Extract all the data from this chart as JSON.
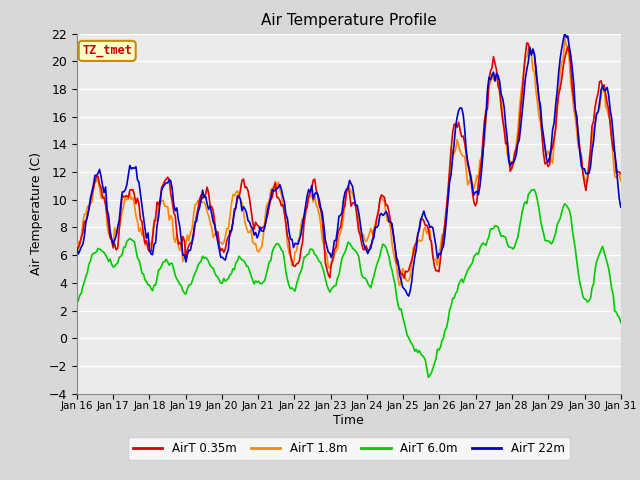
{
  "title": "Air Temperature Profile",
  "xlabel": "Time",
  "ylabel": "Air Temperature (C)",
  "ylim": [
    -4,
    22
  ],
  "yticks": [
    -4,
    -2,
    0,
    2,
    4,
    6,
    8,
    10,
    12,
    14,
    16,
    18,
    20,
    22
  ],
  "xtick_labels": [
    "Jan 16",
    "Jan 17",
    "Jan 18",
    "Jan 19",
    "Jan 20",
    "Jan 21",
    "Jan 22",
    "Jan 23",
    "Jan 24",
    "Jan 25",
    "Jan 26",
    "Jan 27",
    "Jan 28",
    "Jan 29",
    "Jan 30",
    "Jan 31"
  ],
  "annotation_text": "TZ_tmet",
  "annotation_color": "#cc0000",
  "annotation_bg": "#ffffcc",
  "annotation_border": "#cc8800",
  "colors": {
    "AirT 0.35m": "#dd0000",
    "AirT 1.8m": "#ff8800",
    "AirT 6.0m": "#00cc00",
    "AirT 22m": "#0000cc"
  },
  "background_color": "#d8d8d8",
  "plot_bg": "#ebebeb",
  "grid_color": "#ffffff",
  "linewidth": 1.2
}
